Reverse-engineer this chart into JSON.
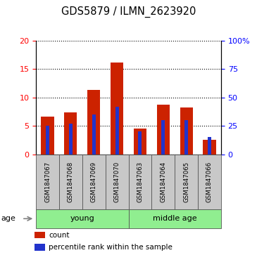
{
  "title": "GDS5879 / ILMN_2623920",
  "samples": [
    "GSM1847067",
    "GSM1847068",
    "GSM1847069",
    "GSM1847070",
    "GSM1847063",
    "GSM1847064",
    "GSM1847065",
    "GSM1847066"
  ],
  "count_values": [
    6.6,
    7.4,
    11.3,
    16.2,
    4.5,
    8.8,
    8.3,
    2.5
  ],
  "percentile_values": [
    5.0,
    5.4,
    7.0,
    8.4,
    4.0,
    6.0,
    6.0,
    3.0
  ],
  "groups": [
    {
      "label": "young",
      "start": 0,
      "end": 4
    },
    {
      "label": "middle age",
      "start": 4,
      "end": 8
    }
  ],
  "ylim_left": [
    0,
    20
  ],
  "ylim_right": [
    0,
    100
  ],
  "yticks_left": [
    0,
    5,
    10,
    15,
    20
  ],
  "yticks_right": [
    0,
    25,
    50,
    75,
    100
  ],
  "ytick_labels_right": [
    "0",
    "25",
    "50",
    "75",
    "100%"
  ],
  "bar_color": "#cc2200",
  "percentile_color": "#2233cc",
  "bg_color_samples": "#c8c8c8",
  "bg_color_group": "#90ee90",
  "legend_count_label": "count",
  "legend_percentile_label": "percentile rank within the sample",
  "age_label": "age",
  "bar_width": 0.55,
  "percentile_bar_width": 0.15
}
